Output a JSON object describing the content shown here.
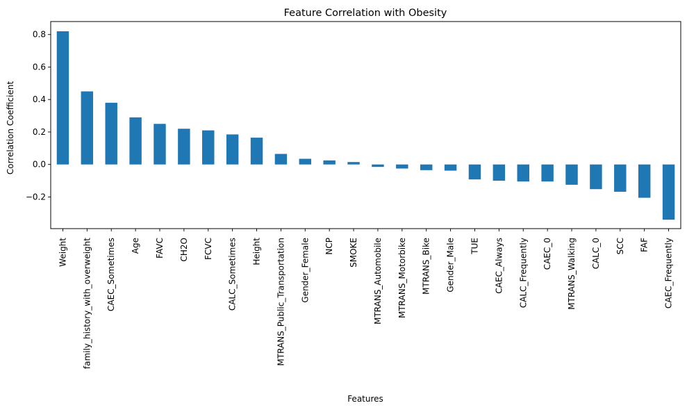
{
  "chart_data": {
    "type": "bar",
    "title": "Feature Correlation with Obesity",
    "xlabel": "Features",
    "ylabel": "Correlation Coefficient",
    "ylim": [
      -0.395,
      0.88
    ],
    "yticks": [
      -0.2,
      0.0,
      0.2,
      0.4,
      0.6,
      0.8
    ],
    "ytick_labels": [
      "−0.2",
      "0.0",
      "0.2",
      "0.4",
      "0.6",
      "0.8"
    ],
    "grid": false,
    "legend": "none",
    "bar_color": "#1f77b4",
    "categories": [
      "Weight",
      "family_history_with_overweight",
      "CAEC_Sometimes",
      "Age",
      "FAVC",
      "CH2O",
      "FCVC",
      "CALC_Sometimes",
      "Height",
      "MTRANS_Public_Transportation",
      "Gender_Female",
      "NCP",
      "SMOKE",
      "MTRANS_Automobile",
      "MTRANS_Motorbike",
      "MTRANS_Bike",
      "Gender_Male",
      "TUE",
      "CAEC_Always",
      "CALC_Frequently",
      "CAEC_0",
      "MTRANS_Walking",
      "CALC_0",
      "SCC",
      "FAF",
      "CAEC_Frequently"
    ],
    "values": [
      0.82,
      0.45,
      0.38,
      0.29,
      0.25,
      0.22,
      0.21,
      0.185,
      0.165,
      0.065,
      0.035,
      0.025,
      0.015,
      -0.015,
      -0.025,
      -0.035,
      -0.038,
      -0.092,
      -0.1,
      -0.105,
      -0.105,
      -0.125,
      -0.152,
      -0.168,
      -0.205,
      -0.34
    ]
  }
}
